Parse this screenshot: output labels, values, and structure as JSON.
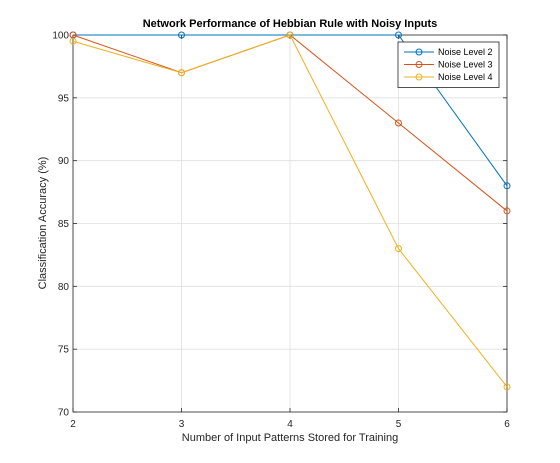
{
  "chart_data": {
    "type": "line",
    "title": "Network Performance of Hebbian Rule with Noisy Inputs",
    "xlabel": "Number of Input Patterns Stored for Training",
    "ylabel": "Classification Accuracy (%)",
    "x": [
      2,
      3,
      4,
      5,
      6
    ],
    "xlim": [
      2,
      6
    ],
    "ylim": [
      70,
      100
    ],
    "xticks": [
      2,
      3,
      4,
      5,
      6
    ],
    "yticks": [
      70,
      75,
      80,
      85,
      90,
      95,
      100
    ],
    "grid": true,
    "legend_position": "top-right",
    "series": [
      {
        "name": "Noise Level 2",
        "color": "#0072bd",
        "values": [
          100,
          100,
          100,
          100,
          88
        ]
      },
      {
        "name": "Noise Level 3",
        "color": "#d95319",
        "values": [
          100,
          97,
          100,
          93,
          86
        ]
      },
      {
        "name": "Noise Level 4",
        "color": "#edb120",
        "values": [
          99.5,
          97,
          100,
          83,
          72
        ]
      }
    ]
  }
}
